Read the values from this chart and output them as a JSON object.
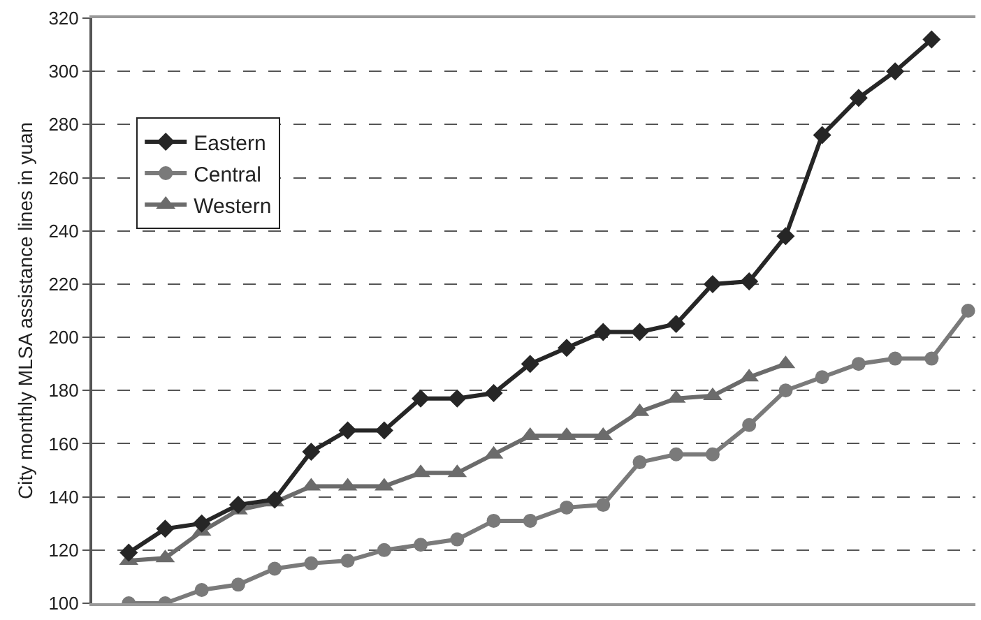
{
  "chart_data": {
    "type": "line",
    "ylabel": "City monthly MLSA assistance lines in yuan",
    "categories": [
      null,
      null,
      null,
      null,
      null,
      null,
      null,
      null,
      null,
      null,
      null,
      null,
      null,
      null,
      null,
      null,
      null,
      null,
      null,
      null,
      null,
      null,
      null,
      null
    ],
    "series": [
      {
        "name": "Eastern",
        "color": "#262626",
        "marker": "diamond",
        "values": [
          119,
          128,
          130,
          137,
          139,
          157,
          165,
          165,
          177,
          177,
          179,
          190,
          196,
          202,
          202,
          205,
          220,
          221,
          238,
          276,
          290,
          300,
          312,
          null
        ]
      },
      {
        "name": "Central",
        "color": "#7a7a7a",
        "marker": "circle",
        "values": [
          100,
          100,
          105,
          107,
          113,
          115,
          116,
          120,
          122,
          124,
          131,
          131,
          136,
          137,
          153,
          156,
          156,
          167,
          180,
          185,
          190,
          192,
          192,
          210
        ]
      },
      {
        "name": "Western",
        "color": "#6b6b6b",
        "marker": "triangle",
        "values": [
          116,
          117,
          127,
          135,
          138,
          144,
          144,
          144,
          149,
          149,
          156,
          163,
          163,
          163,
          172,
          177,
          178,
          185,
          190,
          null,
          null,
          null,
          null,
          null
        ]
      }
    ],
    "ylim": [
      100,
      320
    ],
    "yticks": [
      100,
      120,
      140,
      160,
      180,
      200,
      220,
      240,
      260,
      280,
      300,
      320
    ],
    "grid": "y",
    "legend": "top left",
    "tick_labels": "y",
    "line_style": "solid"
  }
}
